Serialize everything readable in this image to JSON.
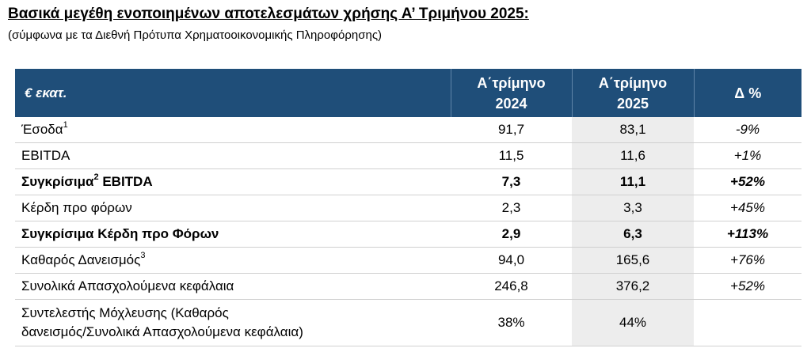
{
  "title": "Βασικά μεγέθη ενοποιημένων αποτελεσμάτων χρήσης Α’ Τριμήνου 2025:",
  "subtitle": "(σύμφωνα με τα Διεθνή Πρότυπα Χρηματοοικονομικής Πληροφόρησης)",
  "table": {
    "header": {
      "label": "€ εκατ.",
      "col1_line1": "Α΄τρίμηνο",
      "col1_line2": "2024",
      "col2_line1": "Α΄τρίμηνο",
      "col2_line2": "2025",
      "col3": "Δ %"
    },
    "rows": [
      {
        "label": "Έσοδα",
        "sup": "1",
        "v2024": "91,7",
        "v2025": "83,1",
        "delta": "-9%"
      },
      {
        "label": "EBITDA",
        "v2024": "11,5",
        "v2025": "11,6",
        "delta": "+1%"
      },
      {
        "label_a": "Συγκρίσιμα",
        "sup": "2",
        "label_b": " EBITDA",
        "v2024": "7,3",
        "v2025": "11,1",
        "delta": "+52%"
      },
      {
        "label": "Κέρδη προ φόρων",
        "v2024": "2,3",
        "v2025": "3,3",
        "delta": "+45%"
      },
      {
        "label": "Συγκρίσιμα Κέρδη προ Φόρων",
        "v2024": "2,9",
        "v2025": "6,3",
        "delta": "+113%"
      },
      {
        "label": "Καθαρός Δανεισμός",
        "sup": "3",
        "v2024": "94,0",
        "v2025": "165,6",
        "delta": "+76%"
      },
      {
        "label": "Συνολικά Απασχολούμενα κεφάλαια",
        "v2024": "246,8",
        "v2025": "376,2",
        "delta": "+52%"
      },
      {
        "label_line1": "Συντελεστής Μόχλευσης (Καθαρός",
        "label_line2": "δανεισμός/Συνολικά Απασχολούμενα κεφάλαια)",
        "v2024": "38%",
        "v2025": "44%",
        "delta": ""
      }
    ]
  }
}
